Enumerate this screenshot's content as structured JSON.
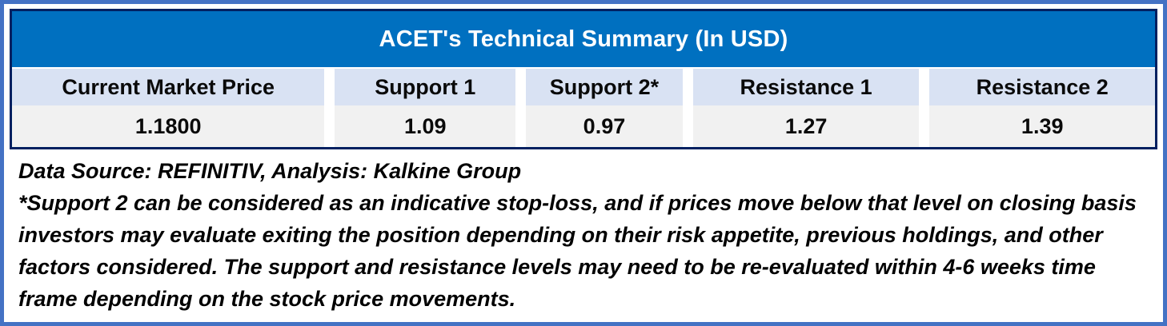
{
  "table": {
    "title": "ACET's Technical Summary (In USD)",
    "columns": [
      {
        "label": "Current Market Price",
        "value": "1.1800"
      },
      {
        "label": "Support 1",
        "value": "1.09"
      },
      {
        "label": "Support 2*",
        "value": "0.97"
      },
      {
        "label": "Resistance 1",
        "value": "1.27"
      },
      {
        "label": "Resistance 2",
        "value": "1.39"
      }
    ]
  },
  "notes": {
    "source_line": "Data Source: REFINITIV, Analysis: Kalkine Group",
    "footnote_lines": [
      "*Support 2 can be considered as an indicative stop-loss, and if prices move below that level on closing basis",
      "investors may evaluate exiting the position depending on their risk appetite, previous holdings, and other",
      "factors considered. The support and resistance levels may need to be re-evaluated within 4-6 weeks time",
      "frame depending on the stock price movements."
    ]
  },
  "colors": {
    "outer_frame_border": "#4472C4",
    "table_border": "#002060",
    "title_bar_background": "#0070C0",
    "title_text": "#FFFFFF",
    "header_row_background": "#D9E2F3",
    "value_row_background": "#F1F1F1",
    "body_text": "#000000"
  }
}
